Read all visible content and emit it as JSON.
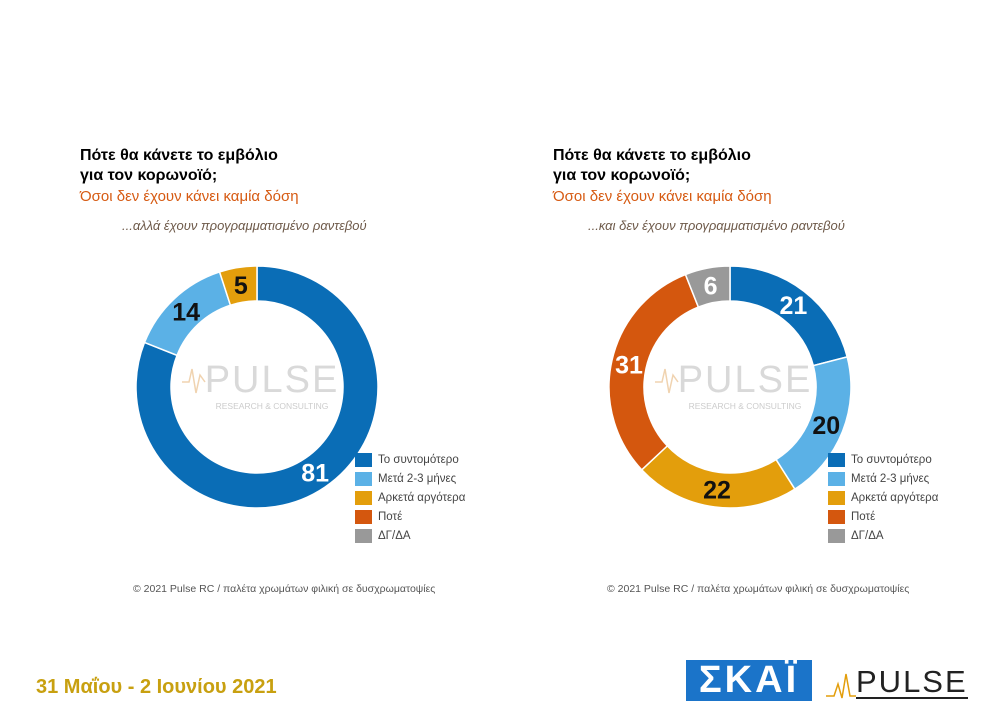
{
  "colors": {
    "first": "#0a6db6",
    "second": "#5bb1e6",
    "third": "#e39e0c",
    "fourth": "#d4570e",
    "fifth": "#999999"
  },
  "legend": [
    "Το συντομότερο",
    "Μετά 2-3 μήνες",
    "Αρκετά αργότερα",
    "Ποτέ",
    "ΔΓ/ΔΑ"
  ],
  "watermark": {
    "word": "PULSE",
    "line": "RESEARCH & CONSULTING"
  },
  "credit": "© 2021 Pulse RC  /  παλέτα χρωμάτων φιλική σε δυσχρωματοψίες",
  "date": "31 Μαΐου - 2 Ιουνίου 2021",
  "logos": {
    "skai": "ΣΚΑΪ",
    "pulse": "PULSE"
  },
  "chart_data": [
    {
      "type": "pie",
      "title": "Πότε θα κάνετε το εμβόλιο\nγια τον κορωνοϊό;",
      "subtitle": "Όσοι δεν έχουν κάνει καμία δόση",
      "note": "...αλλά έχουν προγραμματισμένο ραντεβού",
      "categories": [
        "Το συντομότερο",
        "Μετά 2-3 μήνες",
        "Αρκετά αργότερα",
        "Ποτέ",
        "ΔΓ/ΔΑ"
      ],
      "values": [
        81,
        14,
        5,
        0,
        0
      ],
      "labels": [
        "81",
        "14",
        "5",
        "",
        ""
      ],
      "legend_position": "bottom-right"
    },
    {
      "type": "pie",
      "title": "Πότε θα κάνετε το εμβόλιο\nγια τον κορωνοϊό;",
      "subtitle": "Όσοι δεν έχουν κάνει καμία δόση",
      "note": "...και δεν έχουν προγραμματισμένο ραντεβού",
      "categories": [
        "Το συντομότερο",
        "Μετά 2-3 μήνες",
        "Αρκετά αργότερα",
        "Ποτέ",
        "ΔΓ/ΔΑ"
      ],
      "values": [
        21,
        20,
        22,
        31,
        6
      ],
      "labels": [
        "21",
        "20",
        "22",
        "31",
        "6"
      ],
      "legend_position": "bottom-right"
    }
  ]
}
